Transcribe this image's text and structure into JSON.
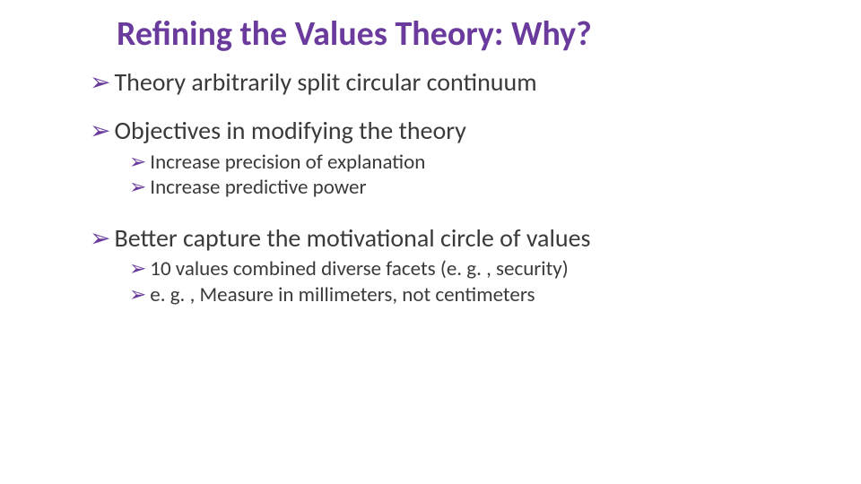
{
  "title": {
    "text": "Refining the Values Theory: Why?",
    "color": "#6a3b9c",
    "fontsize": 38,
    "font_weight": 700
  },
  "bullet_marker_color": "#6a3b9c",
  "body_text_color": "#3a3a3a",
  "background_color": "#ffffff",
  "level1_fontsize": 28,
  "level2_fontsize": 23,
  "bullets": [
    {
      "text": "Theory arbitrarily split circular continuum",
      "children": []
    },
    {
      "text": "Objectives in modifying the theory",
      "children": [
        {
          "text": "Increase precision of explanation"
        },
        {
          "text": "Increase predictive power"
        }
      ]
    },
    {
      "text": "Better capture the motivational circle of values",
      "children": [
        {
          "text": "10 values combined diverse facets (e. g. , security)"
        },
        {
          "text": "e. g. , Measure in millimeters, not centimeters"
        }
      ]
    }
  ]
}
